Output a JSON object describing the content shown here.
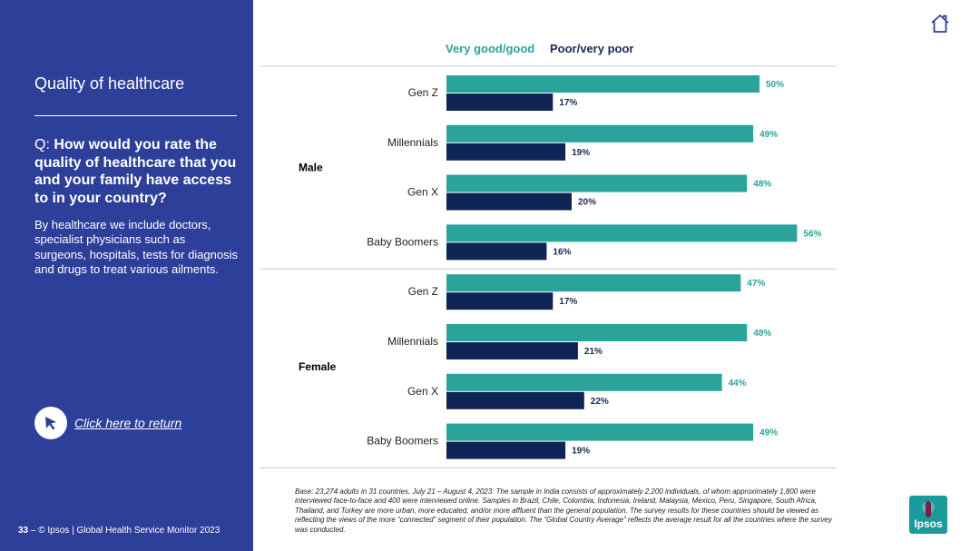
{
  "sidebar": {
    "title": "Quality of healthcare",
    "question_prefix": "Q: ",
    "question_bold": "How would you rate the quality of healthcare that you and your family have access to in your country?",
    "note": "By healthcare we include doctors, specialist physicians such as surgeons, hospitals, tests for diagnosis and drugs to treat various ailments.",
    "return_link": "Click here to return",
    "footer_page": "33",
    "footer_text": " – © Ipsos | Global Health Service Monitor 2023"
  },
  "legend": {
    "good": "Very good/good",
    "poor": "Poor/very poor"
  },
  "colors": {
    "sidebar_bg": "#2e3f9a",
    "good": "#2aa39a",
    "poor": "#0f2555",
    "good_label": "#2aa39a",
    "poor_label": "#1a2a57"
  },
  "chart_data": {
    "type": "bar",
    "orientation": "horizontal",
    "groups": [
      {
        "name": "Male",
        "categories": [
          "Gen Z",
          "Millennials",
          "Gen X",
          "Baby Boomers"
        ],
        "series": [
          {
            "name": "Very good/good",
            "values": [
              50,
              49,
              48,
              56
            ]
          },
          {
            "name": "Poor/very poor",
            "values": [
              17,
              19,
              20,
              16
            ]
          }
        ]
      },
      {
        "name": "Female",
        "categories": [
          "Gen Z",
          "Millennials",
          "Gen X",
          "Baby Boomers"
        ],
        "series": [
          {
            "name": "Very good/good",
            "values": [
              47,
              48,
              44,
              49
            ]
          },
          {
            "name": "Poor/very poor",
            "values": [
              17,
              21,
              22,
              19
            ]
          }
        ]
      }
    ],
    "value_suffix": "%",
    "xlim": [
      0,
      100
    ],
    "legend_position": "top"
  },
  "base_note": "Base: 23,274 adults in 31 countries, July 21 – August 4, 2023. The sample in India consists of approximately 2,200 individuals, of whom approximately 1,800 were interviewed face-to-face and 400 were interviewed online. Samples in Brazil, Chile, Colombia, Indonesia, Ireland, Malaysia, Mexico, Peru, Singapore, South Africa, Thailand, and Turkey are more urban, more educated, and/or more affluent than the general population. The survey results for these countries should be viewed as reflecting the views of the more “connected” segment of their population. The “Global Country Average” reflects the average result for all the countries where the survey was conducted.",
  "logo": {
    "text": "Ipsos"
  }
}
